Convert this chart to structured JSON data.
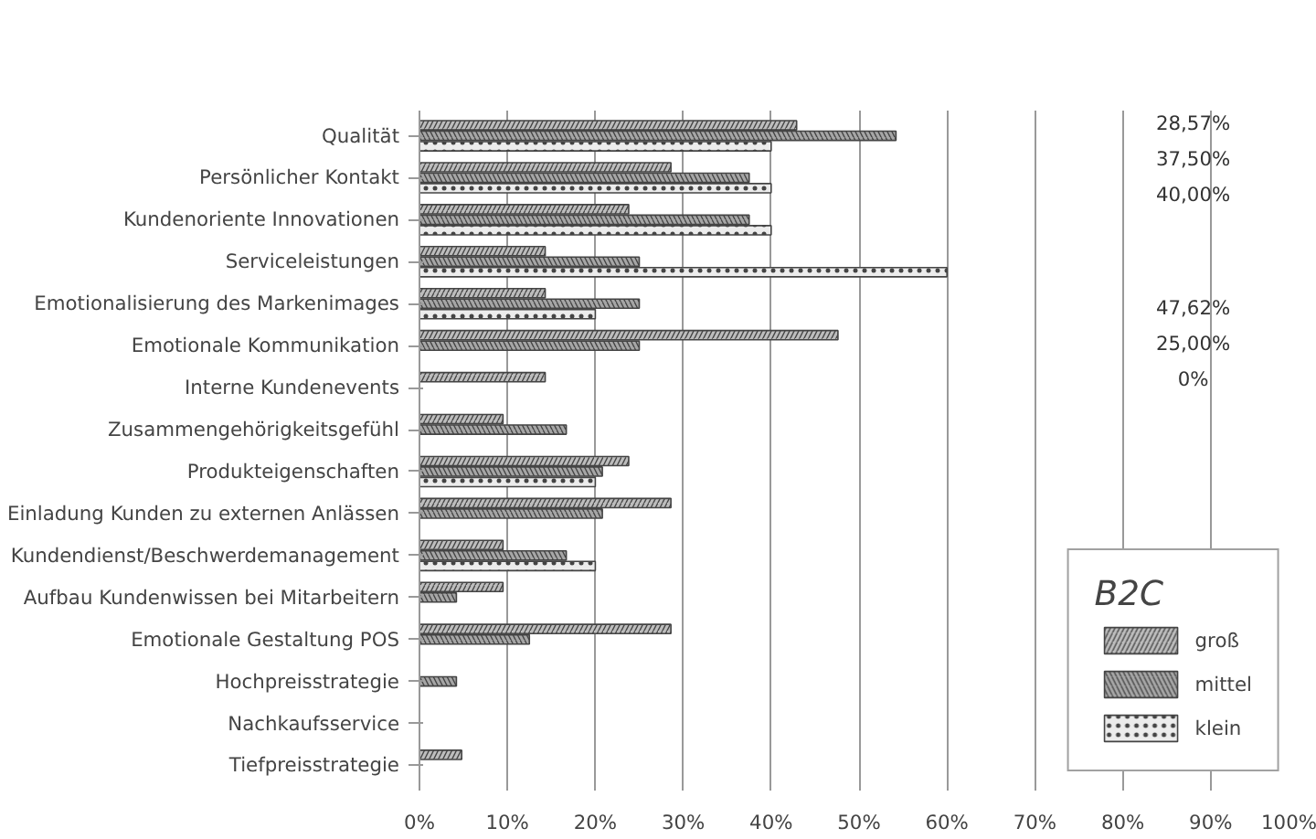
{
  "chart_data": {
    "type": "bar",
    "orientation": "horizontal",
    "legend_title": "B2C",
    "legend": "bottom right",
    "grid": "x",
    "categories": [
      "Qualität",
      "Persönlicher Kontakt",
      "Kundenoriente Innovationen",
      "Serviceleistungen",
      "Emotionalisierung des Markenimages",
      "Emotionale Kommunikation",
      "Interne Kundenevents",
      "Zusammengehörigkeitsgefühl",
      "Produkteigenschaften",
      "Einladung Kunden zu externen Anlässen",
      "Kundendienst/Beschwerdemanagement",
      "Aufbau Kundenwissen bei Mitarbeitern",
      "Emotionale Gestaltung POS",
      "Hochpreisstrategie",
      "Nachkaufsservice",
      "Tiefpreisstrategie"
    ],
    "series": [
      {
        "name": "groß",
        "color": "#bdbdbd",
        "values": [
          42.9,
          28.6,
          23.8,
          14.3,
          14.3,
          47.6,
          14.3,
          9.5,
          23.8,
          28.6,
          9.5,
          9.5,
          28.6,
          0,
          0,
          4.8
        ]
      },
      {
        "name": "mittel",
        "color": "#a6a6a6",
        "values": [
          54.2,
          37.5,
          37.5,
          25,
          25,
          25,
          0,
          16.7,
          20.8,
          20.8,
          16.7,
          4.2,
          12.5,
          4.2,
          0,
          0
        ]
      },
      {
        "name": "klein",
        "color": "#ececec",
        "values": [
          40,
          40,
          40,
          60,
          20,
          0,
          0,
          0,
          20,
          0,
          20,
          0,
          0,
          0,
          0,
          0
        ]
      }
    ],
    "xlim": [
      0,
      100
    ],
    "xticks": [
      {
        "value": 0,
        "label": "0%"
      },
      {
        "value": 10,
        "label": "10%"
      },
      {
        "value": 20,
        "label": "20%"
      },
      {
        "value": 30,
        "label": "30%"
      },
      {
        "value": 40,
        "label": "40%"
      },
      {
        "value": 50,
        "label": "50%"
      },
      {
        "value": 60,
        "label": "60%"
      },
      {
        "value": 70,
        "label": "70%"
      },
      {
        "value": 80,
        "label": "80%"
      },
      {
        "value": 90,
        "label": "90%"
      },
      {
        "value": 100,
        "label": "100%"
      }
    ],
    "annotations": [
      "28,57%",
      "37,50%",
      "40,00%",
      "47,62%",
      "25,00%",
      "0%"
    ]
  }
}
